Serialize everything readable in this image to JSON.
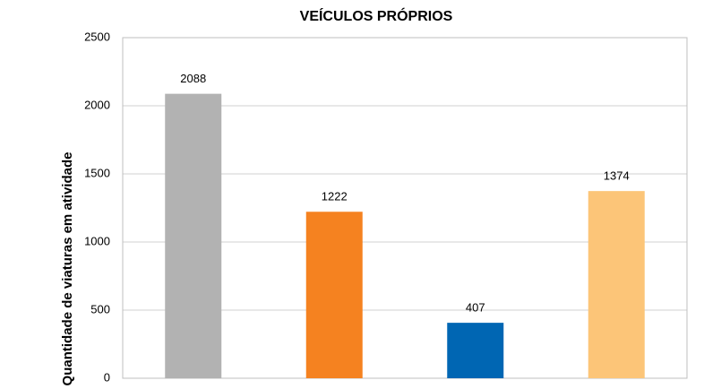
{
  "chart_data": {
    "type": "bar",
    "title": "VEÍCULOS PRÓPRIOS",
    "y_label": "Quantidade de viaturas em atividade",
    "values": [
      2088,
      1222,
      407,
      1374
    ],
    "colors": [
      "#b2b2b2",
      "#f58220",
      "#0066b3",
      "#fcc578"
    ],
    "ylim": [
      0,
      2500
    ],
    "yticks": [
      0,
      500,
      1000,
      1500,
      2000,
      2500
    ],
    "grid": true
  }
}
